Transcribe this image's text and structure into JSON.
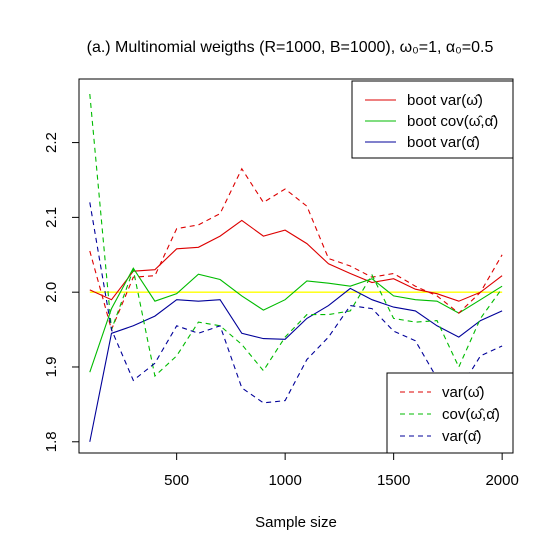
{
  "chart_data": {
    "type": "line",
    "title": "(a.) Multinomial weigths (R=1000, B=1000), ω₀=1, α₀=0.5",
    "xlabel": "Sample size",
    "ylabel": "",
    "xlim": [
      50,
      2050
    ],
    "ylim": [
      1.785,
      2.285
    ],
    "x_ticks": [
      500,
      1000,
      1500,
      2000
    ],
    "y_ticks": [
      1.8,
      1.9,
      2.0,
      2.1,
      2.2
    ],
    "x_tick_labels": [
      "500",
      "1000",
      "1500",
      "2000"
    ],
    "y_tick_labels": [
      "1.8",
      "1.9",
      "2.0",
      "2.1",
      "2.2"
    ],
    "grid": false,
    "reference_line": {
      "y": 2.0,
      "color": "#ffff00"
    },
    "x": [
      100,
      200,
      300,
      400,
      500,
      600,
      700,
      800,
      900,
      1000,
      1100,
      1200,
      1300,
      1400,
      1500,
      1600,
      1700,
      1800,
      1900,
      2000
    ],
    "series": [
      {
        "name": "boot var(ω̂)",
        "color": "#dd0000",
        "dash": "solid",
        "values": [
          2.003,
          1.99,
          2.028,
          2.03,
          2.058,
          2.06,
          2.075,
          2.096,
          2.075,
          2.083,
          2.065,
          2.038,
          2.025,
          2.013,
          2.018,
          2.004,
          1.998,
          1.988,
          2.0,
          2.022
        ]
      },
      {
        "name": "boot cov(ω̂,α̂)",
        "color": "#00bb00",
        "dash": "solid",
        "values": [
          1.893,
          1.978,
          2.032,
          1.988,
          1.998,
          2.024,
          2.017,
          1.995,
          1.976,
          1.99,
          2.015,
          2.012,
          2.008,
          2.018,
          1.995,
          1.99,
          1.988,
          1.972,
          1.99,
          2.008
        ]
      },
      {
        "name": "boot var(α̂)",
        "color": "#000099",
        "dash": "solid",
        "values": [
          1.8,
          1.945,
          1.955,
          1.968,
          1.99,
          1.988,
          1.99,
          1.945,
          1.938,
          1.937,
          1.965,
          1.982,
          2.005,
          1.99,
          1.98,
          1.975,
          1.955,
          1.94,
          1.962,
          1.975
        ]
      },
      {
        "name": "var(ω̂)",
        "color": "#dd0000",
        "dash": "dashed",
        "values": [
          2.055,
          1.95,
          2.02,
          2.022,
          2.085,
          2.09,
          2.105,
          2.165,
          2.12,
          2.138,
          2.115,
          2.045,
          2.035,
          2.02,
          2.025,
          2.008,
          1.995,
          1.972,
          2.0,
          2.05
        ]
      },
      {
        "name": "cov(ω̂,α̂)",
        "color": "#00bb00",
        "dash": "dashed",
        "values": [
          2.265,
          1.95,
          2.03,
          1.888,
          1.915,
          1.96,
          1.955,
          1.93,
          1.895,
          1.94,
          1.97,
          1.97,
          1.975,
          2.023,
          1.965,
          1.96,
          1.962,
          1.9,
          1.965,
          2.005
        ]
      },
      {
        "name": "var(α̂)",
        "color": "#000099",
        "dash": "dashed",
        "values": [
          2.12,
          1.95,
          1.882,
          1.905,
          1.955,
          1.945,
          1.955,
          1.872,
          1.852,
          1.855,
          1.91,
          1.94,
          1.982,
          1.978,
          1.948,
          1.935,
          1.885,
          1.868,
          1.915,
          1.928
        ]
      }
    ],
    "legend_top": {
      "placement": "top-right",
      "entries": [
        "boot var(ω̂)",
        "boot cov(ω̂,α̂)",
        "boot var(α̂)"
      ]
    },
    "legend_bottom": {
      "placement": "bottom-right",
      "entries": [
        "var(ω̂)",
        "cov(ω̂,α̂)",
        "var(α̂)"
      ]
    }
  }
}
